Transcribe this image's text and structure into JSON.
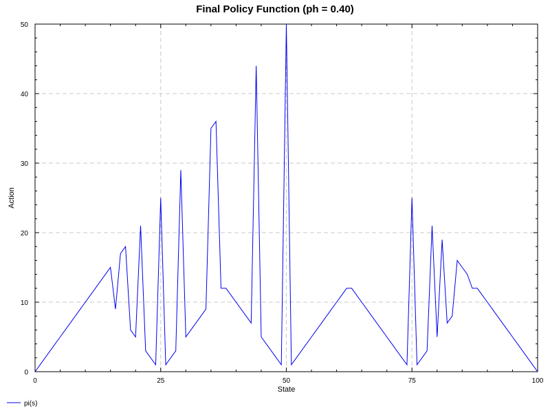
{
  "chart_data": {
    "type": "line",
    "title": "Final Policy Function (ph = 0.40)",
    "xlabel": "State",
    "ylabel": "Action",
    "xlim": [
      0,
      100
    ],
    "ylim": [
      0,
      50
    ],
    "x_ticks": [
      0,
      25,
      50,
      75,
      100
    ],
    "y_ticks": [
      0,
      10,
      20,
      30,
      40,
      50
    ],
    "x_tick_labels": [
      "0",
      "25",
      "50",
      "75",
      "100"
    ],
    "y_tick_labels": [
      "0",
      "10",
      "20",
      "30",
      "40",
      "50"
    ],
    "grid": true,
    "legend_position": "bottom-left",
    "line_color": "#0000ee",
    "series": [
      {
        "name": "pi(s)",
        "x": [
          0,
          1,
          2,
          3,
          4,
          5,
          6,
          7,
          8,
          9,
          10,
          11,
          12,
          13,
          14,
          15,
          16,
          17,
          18,
          19,
          20,
          21,
          22,
          23,
          24,
          25,
          26,
          27,
          28,
          29,
          30,
          31,
          32,
          33,
          34,
          35,
          36,
          37,
          38,
          39,
          40,
          41,
          42,
          43,
          44,
          45,
          46,
          47,
          48,
          49,
          50,
          51,
          52,
          53,
          54,
          55,
          56,
          57,
          58,
          59,
          60,
          61,
          62,
          63,
          64,
          65,
          66,
          67,
          68,
          69,
          70,
          71,
          72,
          73,
          74,
          75,
          76,
          77,
          78,
          79,
          80,
          81,
          82,
          83,
          84,
          85,
          86,
          87,
          88,
          89,
          90,
          91,
          92,
          93,
          94,
          95,
          96,
          97,
          98,
          99,
          100
        ],
        "y": [
          0,
          1,
          2,
          3,
          4,
          5,
          6,
          7,
          8,
          9,
          10,
          11,
          12,
          13,
          14,
          15,
          9,
          17,
          18,
          6,
          5,
          21,
          3,
          2,
          1,
          25,
          1,
          2,
          3,
          29,
          5,
          6,
          7,
          8,
          9,
          35,
          36,
          12,
          12,
          11,
          10,
          9,
          8,
          7,
          44,
          5,
          4,
          3,
          2,
          1,
          50,
          1,
          2,
          3,
          4,
          5,
          6,
          7,
          8,
          9,
          10,
          11,
          12,
          12,
          11,
          10,
          9,
          8,
          7,
          6,
          5,
          4,
          3,
          2,
          1,
          25,
          1,
          2,
          3,
          21,
          5,
          19,
          7,
          8,
          16,
          15,
          14,
          12,
          12,
          11,
          10,
          9,
          8,
          7,
          6,
          5,
          4,
          3,
          2,
          1,
          0
        ]
      }
    ]
  }
}
